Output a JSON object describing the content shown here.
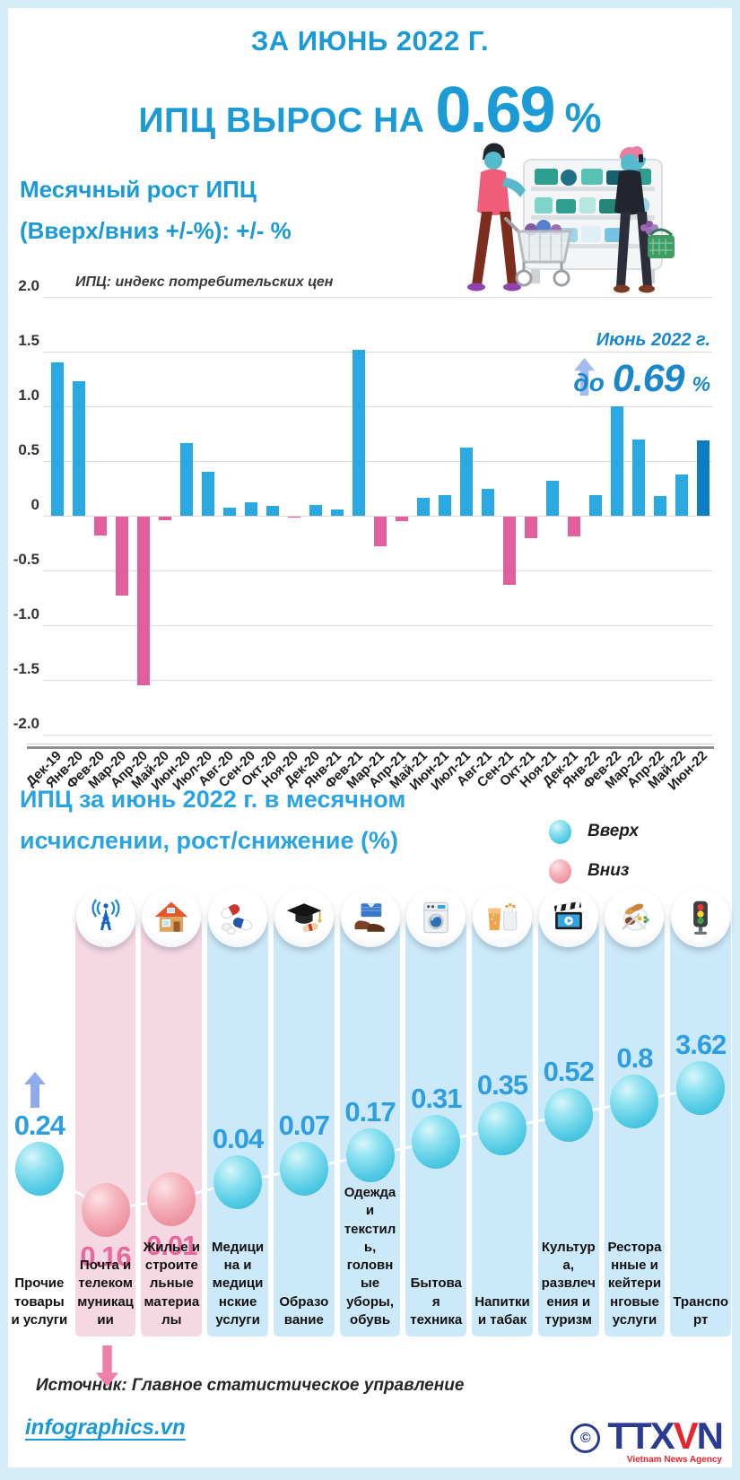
{
  "header": {
    "period": "ЗА ИЮНЬ 2022 Г.",
    "headline_prefix": "ИПЦ ВЫРОС НА",
    "headline_value": "0.69",
    "headline_percent": "%"
  },
  "subtitle": {
    "line1": "Месячный рост ИПЦ",
    "line2": "(Вверх/вниз +/-%): +/- %"
  },
  "chart_data": {
    "type": "bar",
    "title": "Месячный рост ИПЦ (Вверх/вниз +/-%): +/- %",
    "note": "ИПЦ: индекс потребительских цен",
    "categories": [
      "Дек-19",
      "Янв-20",
      "Фев-20",
      "Мар-20",
      "Апр-20",
      "Май-20",
      "Июн-20",
      "Июл-20",
      "Авг-20",
      "Сен-20",
      "Окт-20",
      "Ноя-20",
      "Дек-20",
      "Янв-21",
      "Фев-21",
      "Мар-21",
      "Апр-21",
      "Май-21",
      "Июн-21",
      "Июл-21",
      "Авг-21",
      "Сен-21",
      "Окт-21",
      "Ноя-21",
      "Дек-21",
      "Янв-22",
      "Фев-22",
      "Мар-22",
      "Апр-22",
      "Май-22",
      "Июн-22"
    ],
    "values": [
      1.4,
      1.23,
      -0.17,
      -0.72,
      -1.54,
      -0.03,
      0.66,
      0.4,
      0.07,
      0.12,
      0.09,
      -0.01,
      0.1,
      0.06,
      1.52,
      -0.27,
      -0.04,
      0.16,
      0.19,
      0.62,
      0.25,
      -0.62,
      -0.2,
      0.32,
      -0.18,
      0.19,
      1.0,
      0.7,
      0.18,
      0.38,
      0.69
    ],
    "ylim": [
      -2.0,
      2.0
    ],
    "ytick_labels": [
      "2.0",
      "1.5",
      "1.0",
      "0.5",
      "0",
      "-0.5",
      "-1.0",
      "-1.5",
      "-2.0"
    ],
    "grid": true,
    "colors": {
      "up": "#29a9e1",
      "down": "#e25f9b",
      "highlight_last": "#0c7dc0"
    },
    "annotation": {
      "date": "Июнь 2022 г.",
      "prefix": "до",
      "value": "0.69",
      "suffix": "%"
    }
  },
  "section2": {
    "title_line1": "ИПЦ за июнь 2022 г. в месячном",
    "title_line2": "исчислении, рост/снижение (%)",
    "legend": {
      "up_label": "Вверх",
      "down_label": "Вниз"
    },
    "colors": {
      "up_ball": "#54cbe5",
      "down_ball": "#ee96a3",
      "up_text": "#2d9ee0",
      "down_text": "#e8679c",
      "up_bg": "#cbe9f9",
      "down_bg": "#f6d8e3"
    },
    "items": [
      {
        "label": "Прочие товары и услуги",
        "value": "0.24",
        "direction": "up",
        "icon": "none"
      },
      {
        "label": "Почта и телекоммуникации",
        "value": "0.16",
        "direction": "down",
        "icon": "broadcast-tower"
      },
      {
        "label": "Жилье и строительные материалы",
        "value": "0.01",
        "direction": "down",
        "icon": "house"
      },
      {
        "label": "Медицина и медицинские услуги",
        "value": "0.04",
        "direction": "up",
        "icon": "pills"
      },
      {
        "label": "Образование",
        "value": "0.07",
        "direction": "up",
        "icon": "graduation-cap"
      },
      {
        "label": "Одежда и텍 текстиль, головные уборы, обувь",
        "value": "0.17",
        "direction": "up",
        "icon": "clothing"
      },
      {
        "label": "Бытовая техника",
        "value": "0.31",
        "direction": "up",
        "icon": "washing-machine"
      },
      {
        "label": "Напитки и табак",
        "value": "0.35",
        "direction": "up",
        "icon": "drink-tobacco"
      },
      {
        "label": "Культура, развлечения и туризм",
        "value": "0.52",
        "direction": "up",
        "icon": "clapperboard"
      },
      {
        "label": "Ресторанные и кейтеринговые услуги",
        "value": "0.8",
        "direction": "up",
        "icon": "restaurant-plate"
      },
      {
        "label": "Транспорт",
        "value": "3.62",
        "direction": "up",
        "icon": "traffic-light"
      }
    ]
  },
  "footer": {
    "source": "Источник: Главное статистическое управление",
    "website": "infographics.vn",
    "copyright_symbol": "©",
    "agency_ttx": "TTX",
    "agency_v": "V",
    "agency_n": "N",
    "agency_sub": "Vietnam News Agency"
  }
}
